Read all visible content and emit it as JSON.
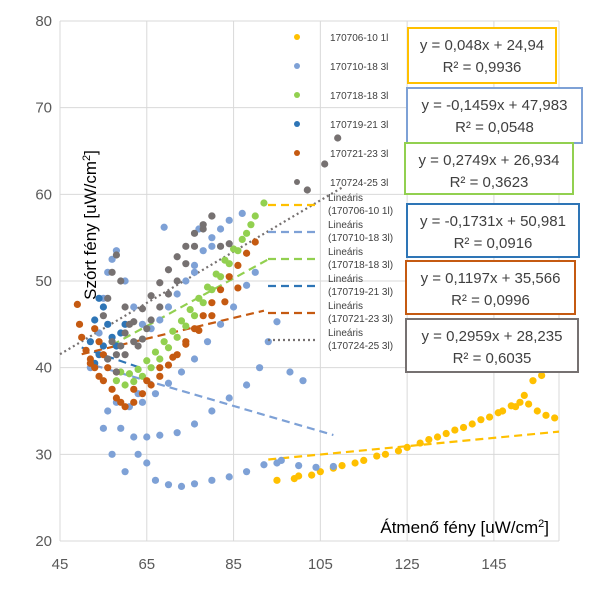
{
  "chart_data": {
    "type": "scatter",
    "x_axis": {
      "title": "Átmenő fény [uW/cm",
      "title_sup": "2",
      "title_end": "]",
      "min": 45,
      "max": 160,
      "ticks": [
        45,
        65,
        85,
        105,
        125,
        145
      ]
    },
    "y_axis": {
      "title": "Szórt fény [uW/cm",
      "title_sup": "2",
      "title_end": "]",
      "min": 20,
      "max": 80,
      "ticks": [
        20,
        30,
        40,
        50,
        60,
        70,
        80
      ]
    },
    "grid": true,
    "series": [
      {
        "name": "170706-10 1l",
        "color": "#FFC000",
        "points": [
          [
            95,
            27
          ],
          [
            100,
            27.5
          ],
          [
            105,
            28
          ],
          [
            110,
            28.7
          ],
          [
            115,
            29.3
          ],
          [
            120,
            30
          ],
          [
            125,
            30.8
          ],
          [
            128,
            31.3
          ],
          [
            132,
            32
          ],
          [
            136,
            32.8
          ],
          [
            140,
            33.5
          ],
          [
            144,
            34.3
          ],
          [
            147,
            35
          ],
          [
            149,
            35.6
          ],
          [
            151,
            36
          ],
          [
            153,
            35.8
          ],
          [
            155,
            35
          ],
          [
            157,
            34.5
          ],
          [
            159,
            34.2
          ],
          [
            152,
            36.8
          ],
          [
            154,
            38.5
          ],
          [
            156,
            39.1
          ],
          [
            99,
            27.2
          ],
          [
            103,
            27.6
          ],
          [
            108,
            28.4
          ],
          [
            113,
            29
          ],
          [
            118,
            29.8
          ],
          [
            123,
            30.4
          ],
          [
            130,
            31.7
          ],
          [
            134,
            32.4
          ],
          [
            138,
            33.1
          ],
          [
            142,
            34
          ],
          [
            146,
            34.8
          ],
          [
            150,
            35.5
          ]
        ],
        "trendline": {
          "label": "Lineáris (170706-10 1l)",
          "slope": 0.048,
          "intercept": 24.94,
          "x_range": [
            93,
            160
          ]
        },
        "equation": "y = 0,048x + 24,94",
        "r2": "R² = 0,9936"
      },
      {
        "name": "170710-18 3l",
        "color": "#7EA1D6",
        "points": [
          [
            55,
            33
          ],
          [
            57,
            30
          ],
          [
            60,
            28
          ],
          [
            63,
            30
          ],
          [
            65,
            29
          ],
          [
            67,
            27
          ],
          [
            70,
            26.5
          ],
          [
            73,
            26.3
          ],
          [
            76,
            26.6
          ],
          [
            80,
            27
          ],
          [
            84,
            27.4
          ],
          [
            88,
            28
          ],
          [
            92,
            28.8
          ],
          [
            96,
            29.3
          ],
          [
            100,
            28.7
          ],
          [
            104,
            28.5
          ],
          [
            108,
            28.6
          ],
          [
            56,
            35
          ],
          [
            59,
            33
          ],
          [
            62,
            32
          ],
          [
            65,
            32
          ],
          [
            68,
            32.2
          ],
          [
            72,
            32.5
          ],
          [
            76,
            33.5
          ],
          [
            80,
            35
          ],
          [
            84,
            36.5
          ],
          [
            88,
            38
          ],
          [
            91,
            40
          ],
          [
            93,
            43
          ],
          [
            95,
            45.3
          ],
          [
            58,
            36
          ],
          [
            61,
            35.5
          ],
          [
            64,
            36
          ],
          [
            67,
            37
          ],
          [
            70,
            38.2
          ],
          [
            73,
            39.5
          ],
          [
            76,
            41
          ],
          [
            79,
            43
          ],
          [
            82,
            45
          ],
          [
            85,
            47
          ],
          [
            88,
            49.5
          ],
          [
            90,
            51
          ],
          [
            52,
            40
          ],
          [
            54,
            44
          ],
          [
            55,
            48
          ],
          [
            56,
            51
          ],
          [
            57,
            52.5
          ],
          [
            58,
            53.5
          ],
          [
            60,
            50
          ],
          [
            62,
            47
          ],
          [
            64,
            45
          ],
          [
            66,
            44.5
          ],
          [
            68,
            45.5
          ],
          [
            70,
            47
          ],
          [
            72,
            48.5
          ],
          [
            74,
            50
          ],
          [
            76,
            51.8
          ],
          [
            78,
            53.5
          ],
          [
            80,
            55
          ],
          [
            82,
            56
          ],
          [
            84,
            57
          ],
          [
            87,
            57.8
          ],
          [
            101,
            38.5
          ],
          [
            98,
            39.5
          ],
          [
            69,
            56.2
          ],
          [
            76,
            51
          ],
          [
            80,
            54
          ],
          [
            77,
            56
          ],
          [
            95,
            29
          ],
          [
            63,
            37
          ]
        ],
        "trendline": {
          "label": "Lineáris (170710-18 3l)",
          "slope": -0.1459,
          "intercept": 47.983,
          "x_range": [
            53,
            108
          ]
        },
        "equation": "y = -0,1459x + 47,983",
        "r2": "R² = 0,0548"
      },
      {
        "name": "170718-18 3l",
        "color": "#92D050",
        "points": [
          [
            58,
            38.5
          ],
          [
            60,
            38
          ],
          [
            62,
            38.4
          ],
          [
            64,
            39
          ],
          [
            66,
            40
          ],
          [
            68,
            41
          ],
          [
            70,
            42.3
          ],
          [
            72,
            43.5
          ],
          [
            74,
            44.8
          ],
          [
            76,
            46
          ],
          [
            78,
            47.5
          ],
          [
            80,
            49
          ],
          [
            82,
            50.5
          ],
          [
            84,
            52
          ],
          [
            86,
            53.5
          ],
          [
            88,
            55.5
          ],
          [
            90,
            57.5
          ],
          [
            92,
            59
          ],
          [
            59,
            39.5
          ],
          [
            61,
            39.3
          ],
          [
            63,
            39.8
          ],
          [
            65,
            40.8
          ],
          [
            67,
            41.8
          ],
          [
            69,
            43
          ],
          [
            71,
            44.2
          ],
          [
            73,
            45.4
          ],
          [
            75,
            46.7
          ],
          [
            77,
            48
          ],
          [
            79,
            49.3
          ],
          [
            81,
            50.8
          ],
          [
            83,
            52.4
          ],
          [
            85,
            53.7
          ],
          [
            87,
            54.8
          ],
          [
            89,
            56.5
          ]
        ],
        "trendline": {
          "label": "Lineáris (170718-18 3l)",
          "slope": 0.2749,
          "intercept": 26.934,
          "x_range": [
            57,
            93
          ]
        },
        "equation": "y = 0,2749x + 26,934",
        "r2": "R² = 0,3623"
      },
      {
        "name": "170719-21 3l",
        "color": "#2E75B6",
        "points": [
          [
            52,
            43
          ],
          [
            53,
            45.5
          ],
          [
            54,
            48
          ],
          [
            55,
            47
          ],
          [
            56,
            45
          ],
          [
            57,
            43.5
          ],
          [
            58,
            42.5
          ],
          [
            59,
            44
          ],
          [
            60,
            45
          ],
          [
            53,
            40.5
          ],
          [
            54,
            41.5
          ],
          [
            55,
            42.5
          ],
          [
            56,
            41
          ]
        ],
        "trendline": {
          "label": "Lineáris (170719-21 3l)",
          "slope": -0.1731,
          "intercept": 50.981,
          "x_range": [
            50,
            63
          ]
        },
        "equation": "y = -0,1731x + 50,981",
        "r2": "R² = 0,0916"
      },
      {
        "name": "170721-23 3l",
        "color": "#C55A11",
        "points": [
          [
            49,
            47.3
          ],
          [
            49.5,
            45
          ],
          [
            50,
            43.5
          ],
          [
            51,
            42
          ],
          [
            52,
            41
          ],
          [
            53,
            40
          ],
          [
            54,
            39
          ],
          [
            55,
            38.5
          ],
          [
            56,
            40
          ],
          [
            57,
            37.5
          ],
          [
            58,
            36.5
          ],
          [
            59,
            36
          ],
          [
            60,
            35.5
          ],
          [
            62,
            36
          ],
          [
            64,
            37
          ],
          [
            66,
            38
          ],
          [
            68,
            39
          ],
          [
            70,
            40.3
          ],
          [
            72,
            41.5
          ],
          [
            74,
            43
          ],
          [
            76,
            44.5
          ],
          [
            78,
            46
          ],
          [
            80,
            47.5
          ],
          [
            82,
            49
          ],
          [
            84,
            50.5
          ],
          [
            86,
            51.8
          ],
          [
            88,
            53.2
          ],
          [
            90,
            54.5
          ],
          [
            62,
            37.5
          ],
          [
            65,
            38.5
          ],
          [
            68,
            40
          ],
          [
            71,
            41.2
          ],
          [
            74,
            42.7
          ],
          [
            77,
            44.3
          ],
          [
            80,
            46
          ],
          [
            83,
            47.6
          ],
          [
            86,
            49.2
          ],
          [
            53,
            44.5
          ],
          [
            54,
            43
          ],
          [
            55,
            41.5
          ],
          [
            52,
            40.5
          ],
          [
            58,
            39.5
          ]
        ],
        "trendline": {
          "label": "Lineáris (170721-23 3l)",
          "slope": 0.1197,
          "intercept": 35.566,
          "x_range": [
            50,
            92
          ]
        },
        "equation": "y = 0,1197x + 35,566",
        "r2": "R² = 0,0996"
      },
      {
        "name": "170724-25 3l",
        "color": "#767171",
        "points": [
          [
            55,
            46
          ],
          [
            56,
            48
          ],
          [
            57,
            51
          ],
          [
            58,
            53
          ],
          [
            59,
            50
          ],
          [
            60,
            47
          ],
          [
            61,
            45
          ],
          [
            62,
            43
          ],
          [
            63,
            42.5
          ],
          [
            64,
            43.3
          ],
          [
            65,
            44.5
          ],
          [
            66,
            45.5
          ],
          [
            68,
            47
          ],
          [
            70,
            48.5
          ],
          [
            72,
            50
          ],
          [
            74,
            52
          ],
          [
            76,
            54
          ],
          [
            78,
            56
          ],
          [
            80,
            57.5
          ],
          [
            57,
            43
          ],
          [
            58,
            41.5
          ],
          [
            59,
            42.5
          ],
          [
            60,
            44
          ],
          [
            62,
            45.3
          ],
          [
            64,
            46.8
          ],
          [
            66,
            48.3
          ],
          [
            68,
            49.8
          ],
          [
            70,
            51.3
          ],
          [
            72,
            52.8
          ],
          [
            74,
            54
          ],
          [
            76,
            55.5
          ],
          [
            78,
            56.5
          ],
          [
            80,
            57.5
          ],
          [
            82,
            54
          ],
          [
            84,
            54.3
          ],
          [
            102,
            60.5
          ],
          [
            106,
            63.5
          ],
          [
            109,
            66.5
          ],
          [
            56,
            41
          ],
          [
            58,
            39.5
          ],
          [
            60,
            41.5
          ]
        ],
        "trendline": {
          "label": "Lineáris (170724-25 3l)",
          "slope": 0.2959,
          "intercept": 28.235,
          "x_range": [
            45,
            110
          ]
        },
        "equation": "y = 0,2959x + 28,235",
        "r2": "R² = 0,6035"
      }
    ]
  }
}
